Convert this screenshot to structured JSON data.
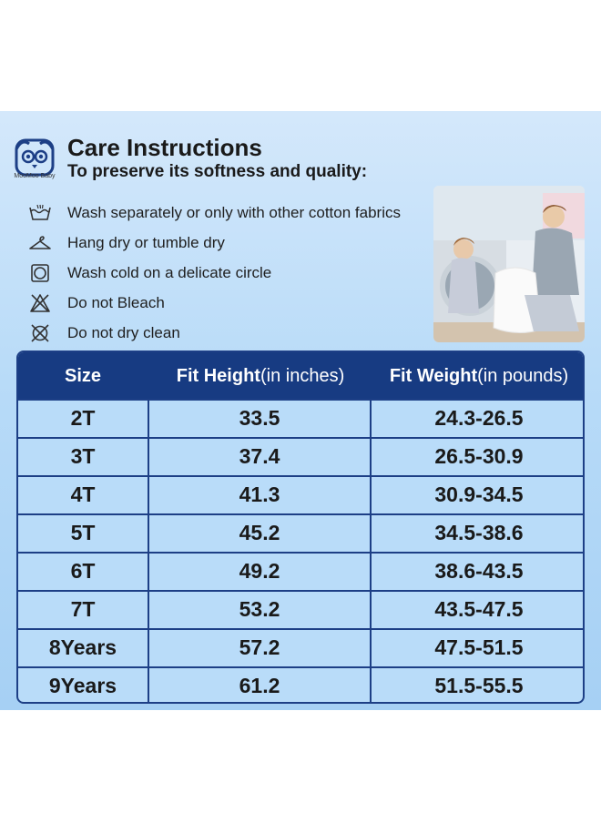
{
  "brand": {
    "name": "MooMoo Baby"
  },
  "header": {
    "title": "Care Instructions",
    "subtitle": "To preserve its softness and quality:"
  },
  "care_items": [
    {
      "icon": "hand-wash-tub-icon",
      "text": "Wash separately or only with other cotton fabrics"
    },
    {
      "icon": "hanger-icon",
      "text": "Hang dry or tumble dry"
    },
    {
      "icon": "tumble-dry-icon",
      "text": "Wash cold on a delicate circle"
    },
    {
      "icon": "no-bleach-icon",
      "text": "Do not Bleach"
    },
    {
      "icon": "no-dry-clean-icon",
      "text": "Do not dry clean"
    }
  ],
  "size_table": {
    "headers": {
      "size": "Size",
      "height_main": "Fit Height",
      "height_unit": "(in inches)",
      "weight_main": "Fit Weight",
      "weight_unit": "(in pounds)"
    },
    "rows": [
      {
        "size": "2T",
        "height": "33.5",
        "weight": "24.3-26.5"
      },
      {
        "size": "3T",
        "height": "37.4",
        "weight": "26.5-30.9"
      },
      {
        "size": "4T",
        "height": "41.3",
        "weight": "30.9-34.5"
      },
      {
        "size": "5T",
        "height": "45.2",
        "weight": "34.5-38.6"
      },
      {
        "size": "6T",
        "height": "49.2",
        "weight": "38.6-43.5"
      },
      {
        "size": "7T",
        "height": "53.2",
        "weight": "43.5-47.5"
      },
      {
        "size": "8Years",
        "height": "57.2",
        "weight": "47.5-51.5"
      },
      {
        "size": "9Years",
        "height": "61.2",
        "weight": "51.5-55.5"
      }
    ]
  },
  "colors": {
    "header_bg": "#173b82",
    "panel_light": "#d4e8fb",
    "panel_dark": "#a6d0f4"
  }
}
